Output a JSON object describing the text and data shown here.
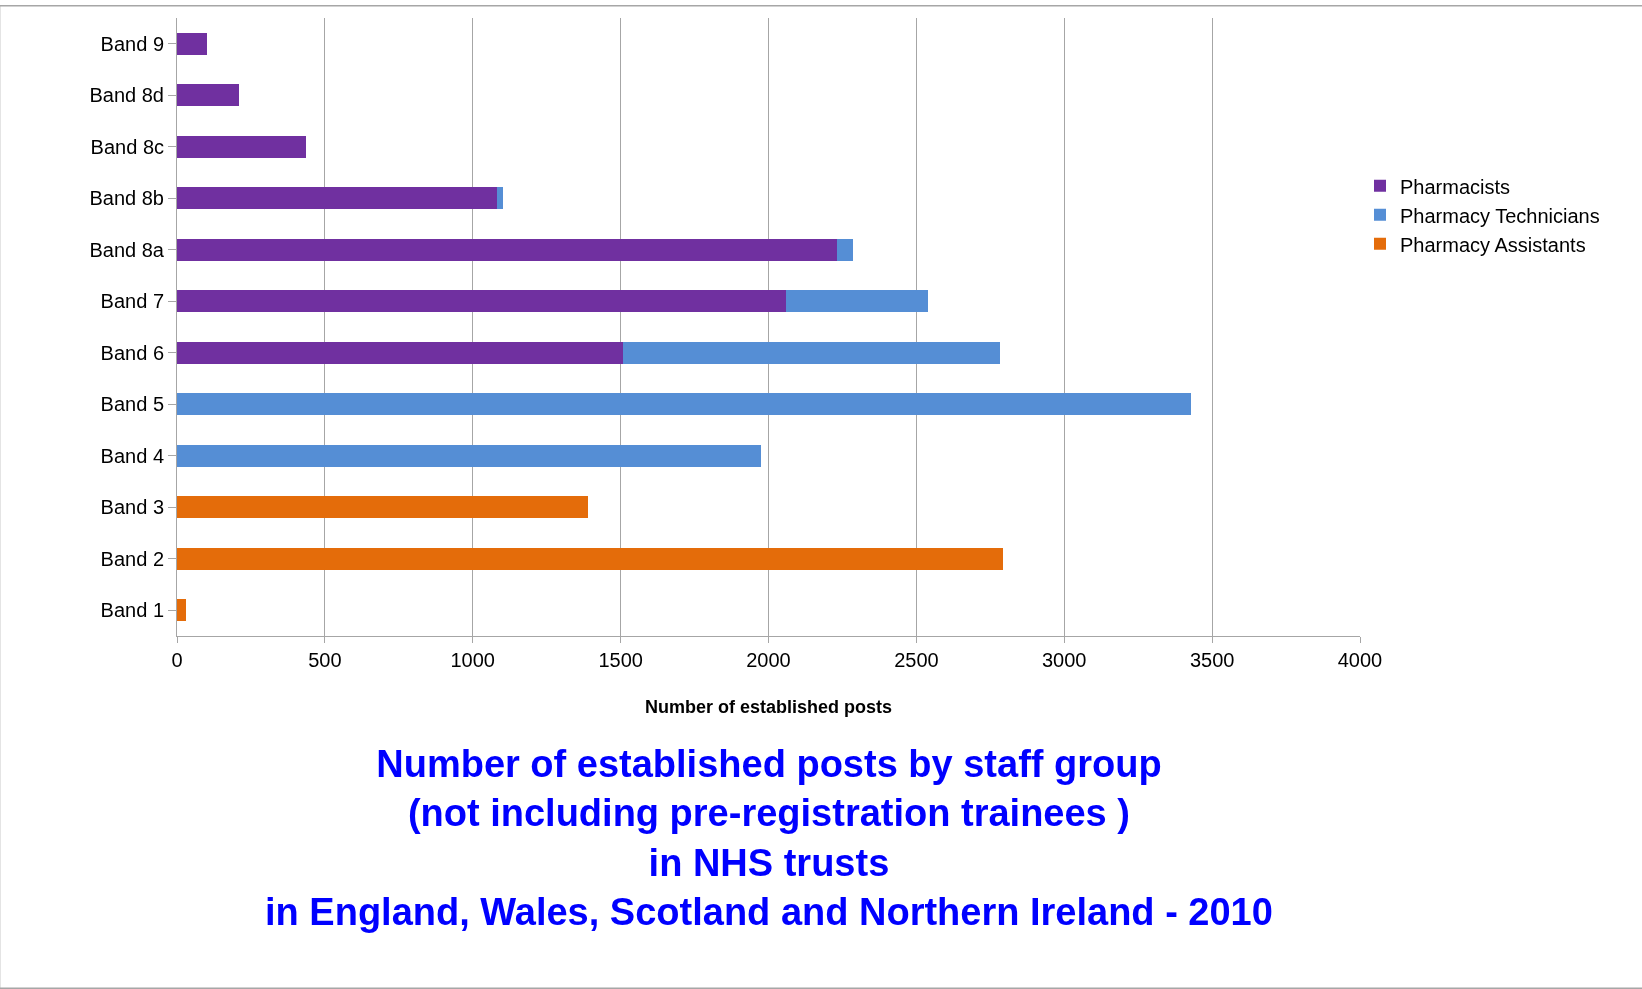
{
  "chart_data": {
    "type": "bar",
    "orientation": "horizontal",
    "stacked": true,
    "title": "Number of established posts by staff group\n(not including pre-registration trainees )\nin NHS trusts\nin England, Wales, Scotland and Northern Ireland - 2010",
    "xlabel": "Number of established posts",
    "categories": [
      "Band 9",
      "Band 8d",
      "Band 8c",
      "Band 8b",
      "Band 8a",
      "Band 7",
      "Band 6",
      "Band 5",
      "Band 4",
      "Band 3",
      "Band 2",
      "Band 1"
    ],
    "series": [
      {
        "name": "Pharmacists",
        "color": "#7030a0",
        "values": [
          100,
          210,
          435,
          1083,
          2230,
          2060,
          1508,
          null,
          null,
          null,
          null,
          null
        ]
      },
      {
        "name": "Pharmacy Technicians",
        "color": "#558ed5",
        "values": [
          null,
          null,
          null,
          20,
          57,
          478,
          1274,
          3430,
          1975,
          null,
          null,
          null
        ]
      },
      {
        "name": "Pharmacy Assistants",
        "color": "#e46c0a",
        "values": [
          null,
          null,
          null,
          null,
          null,
          null,
          null,
          null,
          null,
          1388,
          2793,
          32
        ]
      }
    ],
    "xlim": [
      0,
      4000
    ],
    "xticks": [
      0,
      500,
      1000,
      1500,
      2000,
      2500,
      3000,
      3500,
      4000
    ],
    "grid": "x",
    "legend": "right"
  }
}
